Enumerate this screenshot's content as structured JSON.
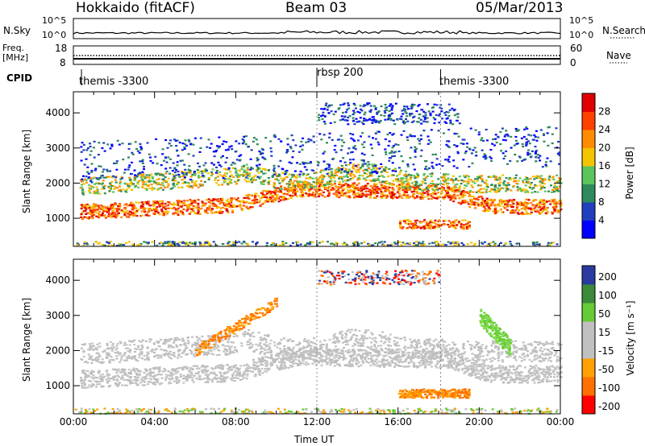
{
  "header": {
    "station": "Hokkaido (fitACF)",
    "beam": "Beam 03",
    "date": "05/Mar/2013"
  },
  "panels": {
    "nsky_label": "N.Sky",
    "nsky_ticks": [
      "10^5",
      "10^0"
    ],
    "nsearch_label": "N.Search",
    "nsearch_ticks": [
      "10^5",
      "10^0"
    ],
    "freq_label": "Freq.",
    "freq_unit": "[MHz]",
    "freq_ticks": [
      "18",
      "8"
    ],
    "nave_label": "Nave",
    "nave_ticks": [
      "60",
      "0"
    ],
    "cpid_label": "CPID",
    "cpid_segments": [
      "themis -3300",
      "rbsp 200",
      "themis -3300"
    ]
  },
  "colors": {
    "power_scale": [
      "#0000ff",
      "#1f3fbf",
      "#2e8a5a",
      "#5cc45c",
      "#f5c400",
      "#ff8c00",
      "#ff4000",
      "#e00000"
    ],
    "velocity_scale": [
      "#ff0000",
      "#ff7000",
      "#ffa000",
      "#c0c0c0",
      "#c0c0c0",
      "#66cc33",
      "#3a8a3a",
      "#2a3aa0"
    ]
  },
  "chart_data": [
    {
      "type": "heatmap",
      "name": "power",
      "ylabel": "Slant Range [km]",
      "yticks": [
        1000,
        2000,
        3000,
        4000
      ],
      "ylim": [
        200,
        4600
      ],
      "xlim_hours": [
        0,
        24
      ],
      "colorbar_label": "Power [dB]",
      "colorbar_ticks": [
        28,
        24,
        20,
        16,
        12,
        8,
        4
      ],
      "colorbar_range": [
        0,
        32
      ]
    },
    {
      "type": "heatmap",
      "name": "velocity",
      "ylabel": "Slant Range [km]",
      "yticks": [
        1000,
        2000,
        3000,
        4000
      ],
      "ylim": [
        200,
        4600
      ],
      "xlim_hours": [
        0,
        24
      ],
      "xlabel": "Time UT",
      "xticks": [
        "00:00",
        "04:00",
        "08:00",
        "12:00",
        "16:00",
        "20:00",
        "00:00"
      ],
      "colorbar_label": "Velocity [m s⁻¹]",
      "colorbar_ticks": [
        200,
        100,
        50,
        15,
        -15,
        -50,
        -100,
        -200
      ]
    }
  ]
}
